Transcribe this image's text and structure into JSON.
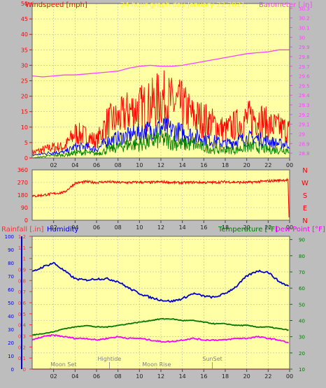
{
  "colors": {
    "background": "#bdbdbd",
    "plot_bg": "#ffffa6",
    "grid": "#b8b8b8",
    "windspeed": "#ff0000",
    "gust": "#ff0000",
    "avg_wind": "#0000ff",
    "low_wind": "#008000",
    "barometer": "#ff40ff",
    "direction": "#ff0000",
    "humidity": "#0000cc",
    "temperature": "#007700",
    "dewpoint": "#ff00ff",
    "rainfall": "#ff3030",
    "title": "#ffff00",
    "moon_text": "#808080"
  },
  "chart_data": [
    {
      "type": "line",
      "id": "wind-baro",
      "title": "24 hour graph day   January 22 2021",
      "left_axis_label": "Windspeed [mph]",
      "right_axis_label": "Barometer [.in]",
      "x_ticks": [
        "02",
        "04",
        "06",
        "08",
        "10",
        "12",
        "14",
        "16",
        "18",
        "20",
        "22",
        "00"
      ],
      "y_left_ticks": [
        "0",
        "5",
        "10",
        "15",
        "20",
        "25",
        "30",
        "35",
        "40",
        "45",
        "50"
      ],
      "y_left_range": [
        0,
        50
      ],
      "y_right_ticks": [
        "28.8",
        "28.9",
        "29",
        "29.1",
        "29.2",
        "29.3",
        "29.4",
        "29.5",
        "29.6",
        "29.7",
        "29.8",
        "29.9",
        "30",
        "30.1",
        "30.2",
        "30.3"
      ],
      "y_right_range": [
        28.75,
        30.35
      ],
      "series": [
        {
          "name": "Barometer",
          "axis": "right",
          "x": [
            0,
            1,
            2,
            3,
            4,
            5,
            6,
            7,
            8,
            9,
            10,
            11,
            12,
            13,
            14,
            15,
            16,
            17,
            18,
            19,
            20,
            21,
            22,
            23,
            24
          ],
          "y": [
            29.6,
            29.59,
            29.6,
            29.61,
            29.61,
            29.62,
            29.63,
            29.64,
            29.65,
            29.68,
            29.7,
            29.71,
            29.7,
            29.7,
            29.71,
            29.73,
            29.75,
            29.77,
            29.79,
            29.81,
            29.83,
            29.84,
            29.85,
            29.87,
            29.87
          ]
        },
        {
          "name": "Gust",
          "axis": "left",
          "x": [
            0,
            1,
            2,
            3,
            4,
            5,
            6,
            7,
            8,
            9,
            10,
            11,
            12,
            13,
            14,
            15,
            16,
            17,
            18,
            19,
            20,
            21,
            22,
            23,
            24
          ],
          "y": [
            2,
            3,
            4,
            4,
            9,
            8,
            6,
            13,
            14,
            17,
            18,
            19,
            22,
            20,
            19,
            15,
            14,
            12,
            10,
            12,
            14,
            15,
            12,
            11,
            10
          ]
        },
        {
          "name": "Average",
          "axis": "left",
          "x": [
            0,
            1,
            2,
            3,
            4,
            5,
            6,
            7,
            8,
            9,
            10,
            11,
            12,
            13,
            14,
            15,
            16,
            17,
            18,
            19,
            20,
            21,
            22,
            23,
            24
          ],
          "y": [
            1,
            1.5,
            2,
            2,
            4,
            4,
            3,
            6,
            7,
            8,
            9,
            10,
            11,
            10,
            9,
            8,
            7,
            6,
            5,
            6,
            7,
            7,
            6,
            5,
            5
          ]
        },
        {
          "name": "Low",
          "axis": "left",
          "x": [
            0,
            1,
            2,
            3,
            4,
            5,
            6,
            7,
            8,
            9,
            10,
            11,
            12,
            13,
            14,
            15,
            16,
            17,
            18,
            19,
            20,
            21,
            22,
            23,
            24
          ],
          "y": [
            0,
            0.5,
            1,
            1,
            2,
            2,
            1.5,
            3,
            4,
            5,
            5,
            6,
            7,
            6,
            5,
            5,
            4,
            3,
            3,
            3,
            4,
            4,
            3,
            3,
            3
          ]
        }
      ]
    },
    {
      "type": "line",
      "id": "wind-direction",
      "y_ticks": [
        "360",
        "270",
        "180",
        "90",
        "0"
      ],
      "y_range": [
        0,
        360
      ],
      "direction_labels": [
        "N",
        "W",
        "S",
        "E",
        "N"
      ],
      "x_ticks": [
        "02",
        "04",
        "06",
        "08",
        "10",
        "12",
        "14",
        "16",
        "18",
        "20",
        "22",
        "00"
      ],
      "series": [
        {
          "name": "Wind Direction",
          "x": [
            0,
            1,
            2,
            3,
            4,
            5,
            6,
            7,
            8,
            9,
            10,
            11,
            12,
            13,
            14,
            15,
            16,
            17,
            18,
            19,
            20,
            21,
            22,
            23,
            24
          ],
          "y": [
            170,
            180,
            190,
            200,
            265,
            275,
            270,
            275,
            270,
            270,
            272,
            270,
            275,
            270,
            268,
            272,
            270,
            270,
            275,
            272,
            270,
            275,
            280,
            285,
            290
          ]
        }
      ]
    },
    {
      "type": "line",
      "id": "temp-hum",
      "left_axis_label": "Rainfall [.in]",
      "left2_axis_label": "Humidity",
      "right_axis_label": "Temperature [°F]",
      "right2_axis_label": "Dew Point [°F]",
      "x_ticks": [
        "02",
        "04",
        "06",
        "08",
        "10",
        "12",
        "14",
        "16",
        "18",
        "20",
        "22",
        "00"
      ],
      "rain_ticks": [
        "0",
        "0.1",
        "0.2",
        "0.3",
        "0.4",
        "0.5",
        "0.6",
        "0.7",
        "0.8",
        "0.9",
        "1",
        "1.1",
        "1.2"
      ],
      "rain_range": [
        0,
        1.2
      ],
      "humidity_ticks": [
        "0",
        "10",
        "20",
        "30",
        "40",
        "50",
        "60",
        "70",
        "80",
        "90",
        "100"
      ],
      "humidity_range": [
        0,
        100
      ],
      "temp_ticks": [
        "10",
        "20",
        "30",
        "40",
        "50",
        "60",
        "70",
        "80",
        "90"
      ],
      "temp_range": [
        10,
        92
      ],
      "annotations": [
        "Moon Set",
        "Hightide",
        "Moon Rise",
        "SunSet"
      ],
      "annotation_x": [
        1.7,
        7.2,
        11.6,
        16.8
      ],
      "series": [
        {
          "name": "Humidity",
          "axis": "humidity",
          "x": [
            0,
            1,
            2,
            3,
            4,
            5,
            6,
            7,
            8,
            9,
            10,
            11,
            12,
            13,
            14,
            15,
            16,
            17,
            18,
            19,
            20,
            21,
            22,
            23,
            24
          ],
          "y": [
            73,
            77,
            80,
            74,
            68,
            67,
            68,
            68,
            66,
            61,
            57,
            54,
            52,
            51,
            53,
            57,
            55,
            54,
            57,
            62,
            70,
            74,
            73,
            66,
            62
          ]
        },
        {
          "name": "Temperature",
          "axis": "temp",
          "x": [
            0,
            1,
            2,
            3,
            4,
            5,
            6,
            7,
            8,
            9,
            10,
            11,
            12,
            13,
            14,
            15,
            16,
            17,
            18,
            19,
            20,
            21,
            22,
            23,
            24
          ],
          "y": [
            31,
            32,
            33,
            35,
            36,
            37,
            36,
            36,
            37,
            38,
            39,
            40,
            41,
            41,
            40,
            40,
            39,
            38,
            38,
            37,
            37,
            36,
            36,
            35,
            34
          ]
        },
        {
          "name": "Dew Point",
          "axis": "temp",
          "x": [
            0,
            1,
            2,
            3,
            4,
            5,
            6,
            7,
            8,
            9,
            10,
            11,
            12,
            13,
            14,
            15,
            16,
            17,
            18,
            19,
            20,
            21,
            22,
            23,
            24
          ],
          "y": [
            28,
            30,
            31,
            30,
            29,
            29,
            28,
            29,
            30,
            29,
            29,
            28,
            27,
            27,
            28,
            29,
            28,
            28,
            28,
            29,
            29,
            30,
            29,
            28,
            26
          ]
        },
        {
          "name": "Rainfall",
          "axis": "rain",
          "x": [
            0,
            24
          ],
          "y": [
            0,
            0
          ]
        }
      ]
    }
  ]
}
